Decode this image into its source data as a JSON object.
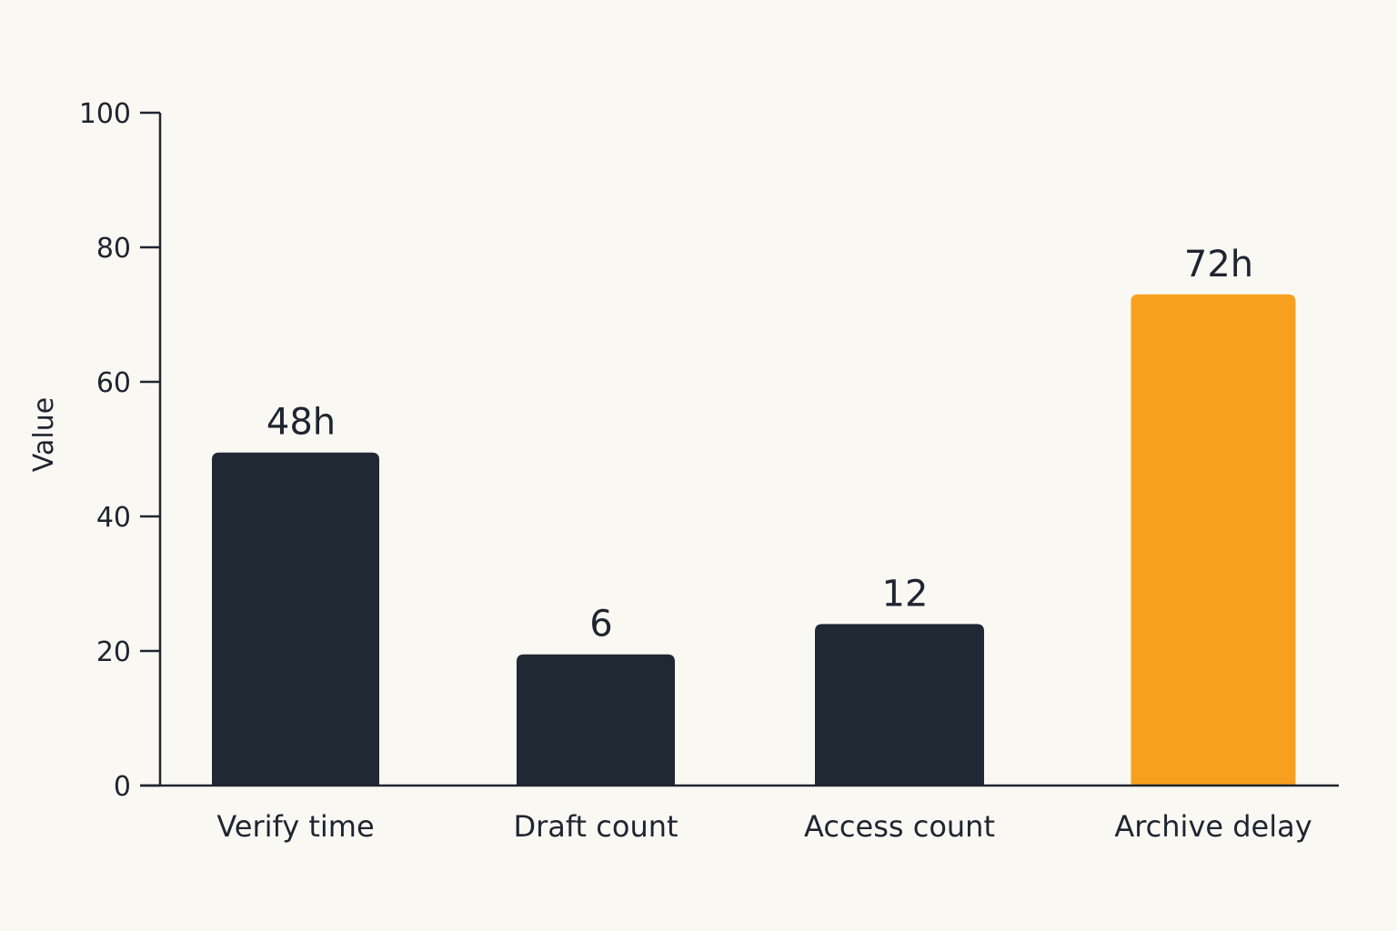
{
  "chart_data": {
    "type": "bar",
    "title": "",
    "xlabel": "",
    "ylabel": "Value",
    "ylim": [
      0,
      100
    ],
    "yticks": [
      0,
      20,
      40,
      60,
      80,
      100
    ],
    "grid": false,
    "categories": [
      "Verify time",
      "Draft count",
      "Access count",
      "Archive delay"
    ],
    "values": [
      49.5,
      19.5,
      24,
      73
    ],
    "data_labels": [
      "48h",
      "6",
      "12",
      "72h"
    ],
    "colors": {
      "default_bar": "#1f2833",
      "highlight_bar": "#f7a020",
      "axis": "#1e2530",
      "background": "#faf8f3"
    },
    "highlight_index": 3
  }
}
